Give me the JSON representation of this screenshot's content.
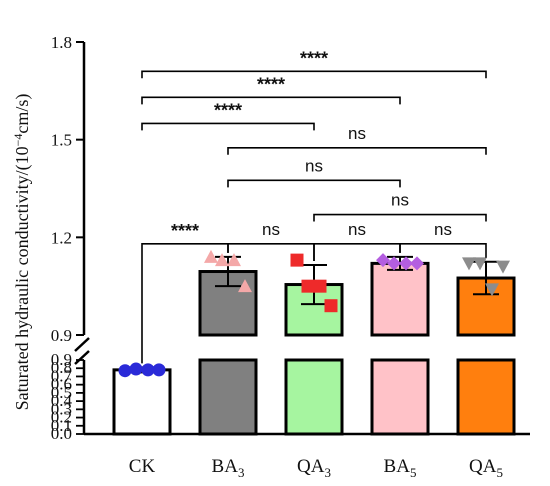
{
  "chart_data": {
    "type": "bar",
    "title": "",
    "xlabel": "",
    "ylabel": {
      "main": "Saturated hydraulic conductivity/(10",
      "sup": "−4",
      "tail": "cm/s)"
    },
    "categories": [
      {
        "base": "CK",
        "sub": ""
      },
      {
        "base": "BA",
        "sub": "3"
      },
      {
        "base": "QA",
        "sub": "3"
      },
      {
        "base": "BA",
        "sub": "5"
      },
      {
        "base": "QA",
        "sub": "5"
      }
    ],
    "axis": {
      "broken": true,
      "lower_range": [
        0.0,
        0.9
      ],
      "upper_range": [
        0.9,
        1.8
      ],
      "lower_ticks": [
        "0.0",
        "0.1",
        "0.2",
        "0.3",
        "0.4",
        "0.5",
        "0.6",
        "0.7",
        "0.8",
        "0.9"
      ],
      "upper_ticks": [
        "0.9",
        "1.2",
        "1.5",
        "1.8"
      ]
    },
    "series": [
      {
        "values": [
          0.78,
          1.095,
          1.055,
          1.12,
          1.075
        ],
        "errors": [
          0.03,
          0.045,
          0.06,
          0.02,
          0.05
        ],
        "bar_colors": [
          "#ffffff",
          "#808080",
          "#a6f5a0",
          "#ffc2c8",
          "#ff7f0e"
        ],
        "marker_colors": [
          "#2a2ad8",
          "#f4a8a8",
          "#ee2a2a",
          "#b45ee0",
          "#8c8c8c"
        ],
        "marker_shapes": [
          "circle",
          "triangle-up",
          "square",
          "diamond",
          "triangle-down"
        ],
        "points": [
          [
            0.77,
            0.79,
            0.78,
            0.78
          ],
          [
            1.14,
            1.13,
            1.13,
            1.05
          ],
          [
            1.13,
            1.05,
            1.05,
            0.99
          ],
          [
            1.13,
            1.12,
            1.12,
            1.12
          ],
          [
            1.12,
            1.12,
            1.04,
            1.11
          ]
        ]
      }
    ],
    "comparisons": [
      {
        "from": 0,
        "to": 4,
        "value": 1.71,
        "label": "****"
      },
      {
        "from": 0,
        "to": 3,
        "value": 1.63,
        "label": "****"
      },
      {
        "from": 0,
        "to": 2,
        "value": 1.55,
        "label": "****"
      },
      {
        "from": 1,
        "to": 4,
        "value": 1.475,
        "label": "ns"
      },
      {
        "from": 1,
        "to": 3,
        "value": 1.375,
        "label": "ns"
      },
      {
        "from": 2,
        "to": 4,
        "value": 1.27,
        "label": "ns"
      },
      {
        "from": 0,
        "to": 1,
        "value": 1.18,
        "label": "****"
      },
      {
        "from": 1,
        "to": 2,
        "value": 1.18,
        "label": "ns"
      },
      {
        "from": 2,
        "to": 3,
        "value": 1.18,
        "label": "ns"
      },
      {
        "from": 3,
        "to": 4,
        "value": 1.18,
        "label": "ns"
      }
    ]
  }
}
